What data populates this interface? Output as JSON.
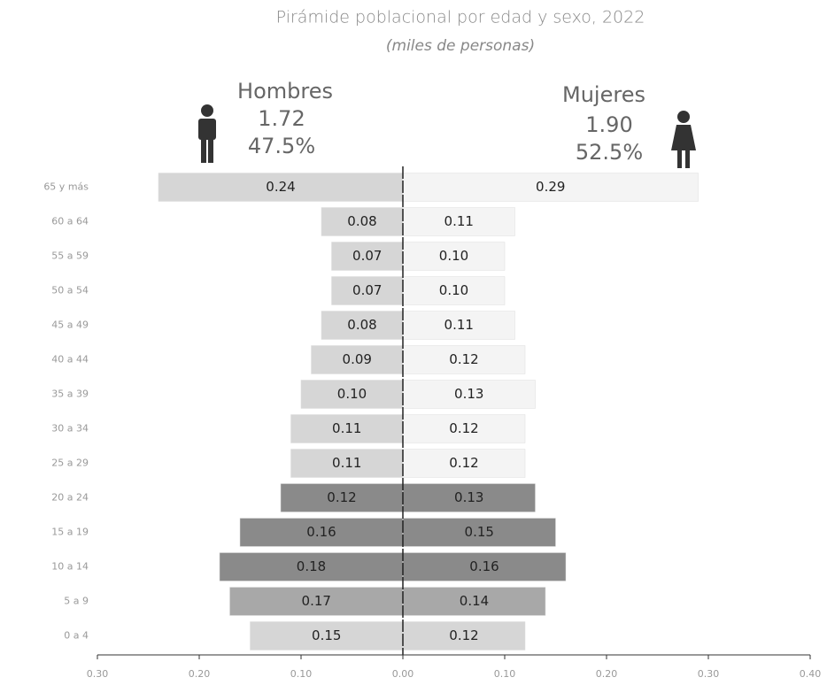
{
  "chart_data": {
    "type": "pyramid",
    "title": "Pirámide poblacional por edad y sexo, 2022",
    "subtitle": "(miles de personas)",
    "left_header": {
      "name": "Hombres",
      "total": "1.72",
      "share": "47.5%"
    },
    "right_header": {
      "name": "Mujeres",
      "total": "1.90",
      "share": "52.5%"
    },
    "categories": [
      "65 y más",
      "60 a 64",
      "55 a 59",
      "50 a 54",
      "45 a 49",
      "40 a 44",
      "35 a 39",
      "30 a 34",
      "25 a 29",
      "20 a 24",
      "15 a 19",
      "10 a 14",
      "5 a 9",
      "0 a 4"
    ],
    "series": [
      {
        "name": "Hombres",
        "side": "left",
        "values": [
          0.24,
          0.08,
          0.07,
          0.07,
          0.08,
          0.09,
          0.1,
          0.11,
          0.11,
          0.12,
          0.16,
          0.18,
          0.17,
          0.15
        ],
        "value_labels": [
          "0.24",
          "0.08",
          "0.07",
          "0.07",
          "0.08",
          "0.09",
          "0.10",
          "0.11",
          "0.11",
          "0.12",
          "0.16",
          "0.18",
          "0.17",
          "0.15"
        ],
        "colors": [
          "#d6d6d6",
          "#d6d6d6",
          "#d6d6d6",
          "#d6d6d6",
          "#d6d6d6",
          "#d6d6d6",
          "#d6d6d6",
          "#d6d6d6",
          "#d6d6d6",
          "#8a8a8a",
          "#8a8a8a",
          "#8a8a8a",
          "#a8a8a8",
          "#d6d6d6"
        ]
      },
      {
        "name": "Mujeres",
        "side": "right",
        "values": [
          0.29,
          0.11,
          0.1,
          0.1,
          0.11,
          0.12,
          0.13,
          0.12,
          0.12,
          0.13,
          0.15,
          0.16,
          0.14,
          0.12
        ],
        "value_labels": [
          "0.29",
          "0.11",
          "0.10",
          "0.10",
          "0.11",
          "0.12",
          "0.13",
          "0.12",
          "0.12",
          "0.13",
          "0.15",
          "0.16",
          "0.14",
          "0.12"
        ],
        "colors": [
          "#f4f4f4",
          "#f4f4f4",
          "#f4f4f4",
          "#f4f4f4",
          "#f4f4f4",
          "#f4f4f4",
          "#f4f4f4",
          "#f4f4f4",
          "#f4f4f4",
          "#8a8a8a",
          "#8a8a8a",
          "#8a8a8a",
          "#a8a8a8",
          "#d6d6d6"
        ]
      }
    ],
    "xlim": [
      -0.3,
      0.4
    ],
    "xticks": [
      {
        "value": -0.3,
        "label": "0.30"
      },
      {
        "value": -0.2,
        "label": "0.20"
      },
      {
        "value": -0.1,
        "label": "0.10"
      },
      {
        "value": 0,
        "label": "0.00"
      },
      {
        "value": 0.1,
        "label": "0.10"
      },
      {
        "value": 0.2,
        "label": "0.20"
      },
      {
        "value": 0.3,
        "label": "0.30"
      },
      {
        "value": 0.4,
        "label": "0.40"
      }
    ]
  }
}
